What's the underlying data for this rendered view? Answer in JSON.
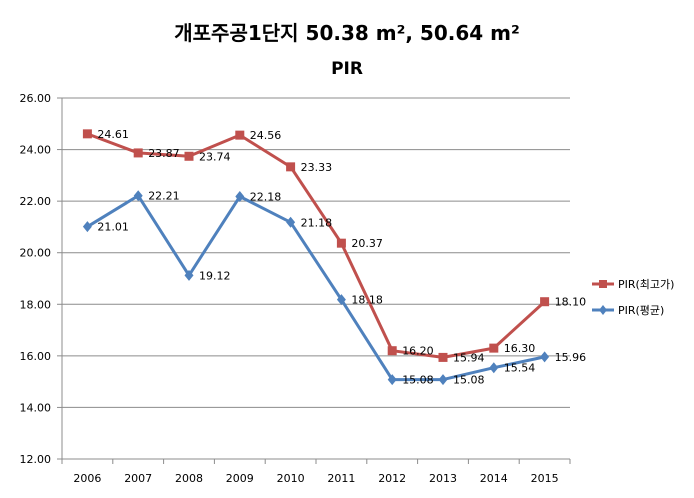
{
  "chart_data": {
    "type": "line",
    "title": "개포주공1단지 50.38 m², 50.64 m²",
    "subtitle": "PIR",
    "categories": [
      "2006",
      "2007",
      "2008",
      "2009",
      "2010",
      "2011",
      "2012",
      "2013",
      "2014",
      "2015"
    ],
    "series": [
      {
        "name": "PIR(최고가)",
        "color": "#c0504d",
        "marker": "square",
        "values": [
          24.61,
          23.87,
          23.74,
          24.56,
          23.33,
          20.37,
          16.2,
          15.94,
          16.3,
          18.1
        ]
      },
      {
        "name": "PIR(평균)",
        "color": "#4f81bd",
        "marker": "diamond",
        "values": [
          21.01,
          22.21,
          19.12,
          22.18,
          21.18,
          18.18,
          15.08,
          15.08,
          15.54,
          15.96
        ]
      }
    ],
    "ylim": [
      12.0,
      26.0
    ],
    "yticks": [
      "12.00",
      "14.00",
      "16.00",
      "18.00",
      "20.00",
      "22.00",
      "24.00",
      "26.00"
    ],
    "grid": true,
    "legend": "right"
  }
}
